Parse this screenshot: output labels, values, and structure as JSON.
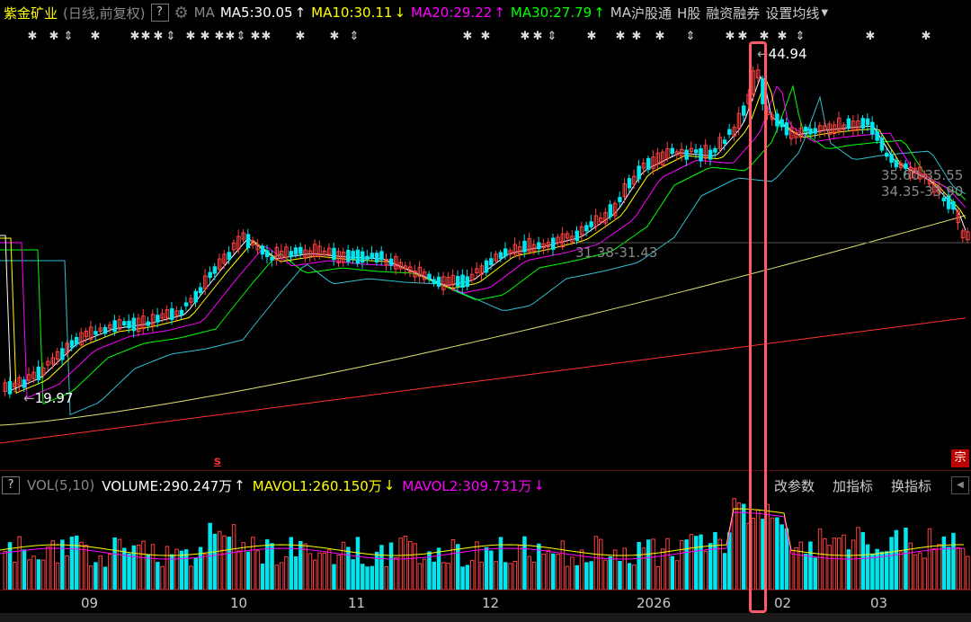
{
  "header": {
    "stock_name": "紫金矿业",
    "mode": "(日线,前复权)",
    "help": "?",
    "ma_label": "MA",
    "ma5": "MA5:30.05",
    "ma10": "MA10:30.11",
    "ma20": "MA20:29.22",
    "ma30": "MA30:27.79",
    "ma_more": "MA",
    "hgt": "沪股通",
    "hk": "H股",
    "margin": "融资融券",
    "settings": "设置均线",
    "arrow_up": "↑",
    "arrow_down": "↓"
  },
  "price_labels": {
    "high": "44.94",
    "low": "19.97",
    "mid": "31.38-31.43",
    "r1": "35.60-35.55",
    "r2": "34.35-33.90"
  },
  "markers": {
    "s_icon": "s",
    "zong": "宗"
  },
  "volume": {
    "help": "?",
    "title": "VOL(5,10)",
    "volume": "VOLUME:290.247万",
    "mavol1": "MAVOL1:260.150万",
    "mavol2": "MAVOL2:309.731万",
    "edit_params": "改参数",
    "add_indicator": "加指标",
    "switch_indicator": "换指标"
  },
  "x_axis": [
    "09",
    "10",
    "11",
    "12",
    "2026",
    "02",
    "03"
  ],
  "colors": {
    "up": "#ff4040",
    "down": "#00e5ee",
    "ma5": "#ffffff",
    "ma10": "#ffff00",
    "ma20": "#ff00ff",
    "ma30": "#00ff00",
    "highlight": "#ff5a66"
  }
}
